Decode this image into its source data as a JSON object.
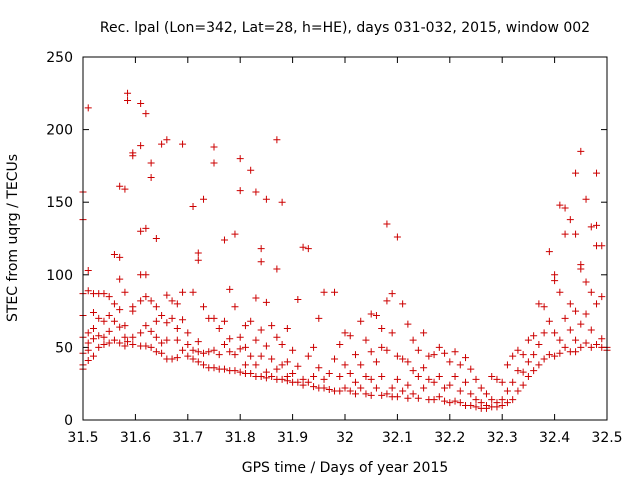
{
  "chart_data": {
    "type": "scatter",
    "title": "Rec. lpal (Lon=342, Lat=28, h=HE), days 031-032, 2015, window 002",
    "xlabel": "GPS time / Days of year 2015",
    "ylabel": "STEC from uqrg / TECUs",
    "xlim": [
      31.5,
      32.5
    ],
    "ylim": [
      0,
      250
    ],
    "x_ticks": [
      "31.5",
      "31.6",
      "31.7",
      "31.8",
      "31.9",
      "32",
      "32.1",
      "32.2",
      "32.3",
      "32.4",
      "32.5"
    ],
    "y_ticks": [
      "0",
      "50",
      "100",
      "150",
      "200",
      "250"
    ],
    "marker": "+",
    "color": "#cc0000",
    "points": [
      [
        31.5,
        157
      ],
      [
        31.5,
        138
      ],
      [
        31.5,
        87
      ],
      [
        31.5,
        72
      ],
      [
        31.5,
        57
      ],
      [
        31.5,
        46
      ],
      [
        31.5,
        38
      ],
      [
        31.5,
        35
      ],
      [
        31.51,
        215
      ],
      [
        31.51,
        103
      ],
      [
        31.51,
        89
      ],
      [
        31.51,
        60
      ],
      [
        31.51,
        53
      ],
      [
        31.51,
        48
      ],
      [
        31.51,
        41
      ],
      [
        31.52,
        87
      ],
      [
        31.52,
        74
      ],
      [
        31.52,
        63
      ],
      [
        31.52,
        56
      ],
      [
        31.52,
        44
      ],
      [
        31.53,
        87
      ],
      [
        31.53,
        70
      ],
      [
        31.53,
        58
      ],
      [
        31.53,
        50
      ],
      [
        31.54,
        87
      ],
      [
        31.54,
        68
      ],
      [
        31.54,
        57
      ],
      [
        31.54,
        52
      ],
      [
        31.55,
        85
      ],
      [
        31.55,
        72
      ],
      [
        31.55,
        61
      ],
      [
        31.55,
        53
      ],
      [
        31.56,
        114
      ],
      [
        31.56,
        80
      ],
      [
        31.56,
        68
      ],
      [
        31.56,
        55
      ],
      [
        31.57,
        161
      ],
      [
        31.57,
        112
      ],
      [
        31.57,
        97
      ],
      [
        31.57,
        76
      ],
      [
        31.57,
        64
      ],
      [
        31.57,
        53
      ],
      [
        31.58,
        159
      ],
      [
        31.58,
        88
      ],
      [
        31.58,
        65
      ],
      [
        31.58,
        57
      ],
      [
        31.58,
        51
      ],
      [
        31.585,
        225
      ],
      [
        31.585,
        220
      ],
      [
        31.585,
        54
      ],
      [
        31.595,
        184
      ],
      [
        31.595,
        182
      ],
      [
        31.595,
        78
      ],
      [
        31.595,
        75
      ],
      [
        31.595,
        57
      ],
      [
        31.595,
        52
      ],
      [
        31.61,
        218
      ],
      [
        31.61,
        189
      ],
      [
        31.61,
        130
      ],
      [
        31.61,
        100
      ],
      [
        31.61,
        82
      ],
      [
        31.61,
        60
      ],
      [
        31.61,
        51
      ],
      [
        31.62,
        211
      ],
      [
        31.62,
        132
      ],
      [
        31.62,
        100
      ],
      [
        31.62,
        85
      ],
      [
        31.62,
        65
      ],
      [
        31.62,
        51
      ],
      [
        31.63,
        177
      ],
      [
        31.63,
        167
      ],
      [
        31.63,
        82
      ],
      [
        31.63,
        61
      ],
      [
        31.63,
        50
      ],
      [
        31.64,
        125
      ],
      [
        31.64,
        78
      ],
      [
        31.64,
        68
      ],
      [
        31.64,
        57
      ],
      [
        31.64,
        47
      ],
      [
        31.65,
        190
      ],
      [
        31.65,
        72
      ],
      [
        31.65,
        53
      ],
      [
        31.65,
        46
      ],
      [
        31.66,
        193
      ],
      [
        31.66,
        86
      ],
      [
        31.66,
        67
      ],
      [
        31.66,
        55
      ],
      [
        31.66,
        42
      ],
      [
        31.67,
        82
      ],
      [
        31.67,
        70
      ],
      [
        31.67,
        42
      ],
      [
        31.68,
        80
      ],
      [
        31.68,
        63
      ],
      [
        31.68,
        55
      ],
      [
        31.68,
        43
      ],
      [
        31.69,
        190
      ],
      [
        31.69,
        88
      ],
      [
        31.69,
        69
      ],
      [
        31.69,
        48
      ],
      [
        31.7,
        60
      ],
      [
        31.7,
        52
      ],
      [
        31.7,
        44
      ],
      [
        31.71,
        147
      ],
      [
        31.71,
        88
      ],
      [
        31.71,
        48
      ],
      [
        31.71,
        42
      ],
      [
        31.72,
        115
      ],
      [
        31.72,
        110
      ],
      [
        31.72,
        54
      ],
      [
        31.72,
        47
      ],
      [
        31.72,
        40
      ],
      [
        31.73,
        152
      ],
      [
        31.73,
        78
      ],
      [
        31.73,
        46
      ],
      [
        31.73,
        38
      ],
      [
        31.74,
        70
      ],
      [
        31.74,
        47
      ],
      [
        31.74,
        36
      ],
      [
        31.75,
        188
      ],
      [
        31.75,
        177
      ],
      [
        31.75,
        70
      ],
      [
        31.75,
        48
      ],
      [
        31.75,
        36
      ],
      [
        31.76,
        63
      ],
      [
        31.76,
        45
      ],
      [
        31.76,
        35
      ],
      [
        31.77,
        124
      ],
      [
        31.77,
        68
      ],
      [
        31.77,
        52
      ],
      [
        31.77,
        35
      ],
      [
        31.78,
        90
      ],
      [
        31.78,
        56
      ],
      [
        31.78,
        47
      ],
      [
        31.78,
        34
      ],
      [
        31.79,
        128
      ],
      [
        31.79,
        78
      ],
      [
        31.79,
        45
      ],
      [
        31.79,
        34
      ],
      [
        31.8,
        180
      ],
      [
        31.8,
        158
      ],
      [
        31.8,
        57
      ],
      [
        31.8,
        49
      ],
      [
        31.8,
        33
      ],
      [
        31.81,
        65
      ],
      [
        31.81,
        50
      ],
      [
        31.81,
        38
      ],
      [
        31.81,
        32
      ],
      [
        31.82,
        172
      ],
      [
        31.82,
        68
      ],
      [
        31.82,
        44
      ],
      [
        31.82,
        32
      ],
      [
        31.83,
        157
      ],
      [
        31.83,
        84
      ],
      [
        31.83,
        55
      ],
      [
        31.83,
        38
      ],
      [
        31.83,
        30
      ],
      [
        31.84,
        118
      ],
      [
        31.84,
        109
      ],
      [
        31.84,
        62
      ],
      [
        31.84,
        44
      ],
      [
        31.84,
        30
      ],
      [
        31.85,
        152
      ],
      [
        31.85,
        81
      ],
      [
        31.85,
        51
      ],
      [
        31.85,
        33
      ],
      [
        31.85,
        29
      ],
      [
        31.86,
        65
      ],
      [
        31.86,
        42
      ],
      [
        31.86,
        30
      ],
      [
        31.87,
        193
      ],
      [
        31.87,
        104
      ],
      [
        31.87,
        57
      ],
      [
        31.87,
        35
      ],
      [
        31.87,
        28
      ],
      [
        31.88,
        150
      ],
      [
        31.88,
        52
      ],
      [
        31.88,
        38
      ],
      [
        31.88,
        28
      ],
      [
        31.89,
        63
      ],
      [
        31.89,
        40
      ],
      [
        31.89,
        30
      ],
      [
        31.89,
        27
      ],
      [
        31.9,
        48
      ],
      [
        31.9,
        32
      ],
      [
        31.9,
        26
      ],
      [
        31.91,
        83
      ],
      [
        31.91,
        37
      ],
      [
        31.91,
        26
      ],
      [
        31.92,
        119
      ],
      [
        31.92,
        28
      ],
      [
        31.92,
        24
      ],
      [
        31.93,
        118
      ],
      [
        31.93,
        44
      ],
      [
        31.93,
        26
      ],
      [
        31.94,
        50
      ],
      [
        31.94,
        30
      ],
      [
        31.94,
        23
      ],
      [
        31.95,
        70
      ],
      [
        31.95,
        36
      ],
      [
        31.95,
        22
      ],
      [
        31.96,
        88
      ],
      [
        31.96,
        28
      ],
      [
        31.96,
        22
      ],
      [
        31.97,
        32
      ],
      [
        31.97,
        21
      ],
      [
        31.98,
        88
      ],
      [
        31.98,
        42
      ],
      [
        31.98,
        20
      ],
      [
        31.99,
        52
      ],
      [
        31.99,
        30
      ],
      [
        31.99,
        20
      ],
      [
        32.0,
        60
      ],
      [
        32.0,
        38
      ],
      [
        32.0,
        22
      ],
      [
        32.01,
        58
      ],
      [
        32.01,
        32
      ],
      [
        32.01,
        20
      ],
      [
        32.02,
        45
      ],
      [
        32.02,
        26
      ],
      [
        32.02,
        18
      ],
      [
        32.03,
        68
      ],
      [
        32.03,
        38
      ],
      [
        32.03,
        22
      ],
      [
        32.04,
        55
      ],
      [
        32.04,
        30
      ],
      [
        32.04,
        18
      ],
      [
        32.05,
        73
      ],
      [
        32.05,
        47
      ],
      [
        32.05,
        28
      ],
      [
        32.05,
        17
      ],
      [
        32.06,
        72
      ],
      [
        32.06,
        40
      ],
      [
        32.06,
        22
      ],
      [
        32.07,
        63
      ],
      [
        32.07,
        50
      ],
      [
        32.07,
        30
      ],
      [
        32.07,
        17
      ],
      [
        32.08,
        135
      ],
      [
        32.08,
        82
      ],
      [
        32.08,
        48
      ],
      [
        32.08,
        18
      ],
      [
        32.09,
        87
      ],
      [
        32.09,
        60
      ],
      [
        32.09,
        22
      ],
      [
        32.09,
        16
      ],
      [
        32.1,
        126
      ],
      [
        32.1,
        44
      ],
      [
        32.1,
        28
      ],
      [
        32.1,
        16
      ],
      [
        32.11,
        80
      ],
      [
        32.11,
        42
      ],
      [
        32.11,
        20
      ],
      [
        32.12,
        66
      ],
      [
        32.12,
        40
      ],
      [
        32.12,
        24
      ],
      [
        32.12,
        15
      ],
      [
        32.13,
        55
      ],
      [
        32.13,
        34
      ],
      [
        32.13,
        18
      ],
      [
        32.14,
        48
      ],
      [
        32.14,
        30
      ],
      [
        32.14,
        15
      ],
      [
        32.15,
        60
      ],
      [
        32.15,
        36
      ],
      [
        32.15,
        22
      ],
      [
        32.16,
        44
      ],
      [
        32.16,
        28
      ],
      [
        32.16,
        14
      ],
      [
        32.17,
        45
      ],
      [
        32.17,
        26
      ],
      [
        32.17,
        14
      ],
      [
        32.18,
        50
      ],
      [
        32.18,
        30
      ],
      [
        32.18,
        16
      ],
      [
        32.19,
        46
      ],
      [
        32.19,
        22
      ],
      [
        32.19,
        13
      ],
      [
        32.2,
        40
      ],
      [
        32.2,
        24
      ],
      [
        32.2,
        12
      ],
      [
        32.21,
        47
      ],
      [
        32.21,
        30
      ],
      [
        32.21,
        13
      ],
      [
        32.22,
        38
      ],
      [
        32.22,
        20
      ],
      [
        32.22,
        12
      ],
      [
        32.23,
        43
      ],
      [
        32.23,
        26
      ],
      [
        32.23,
        10
      ],
      [
        32.24,
        35
      ],
      [
        32.24,
        18
      ],
      [
        32.24,
        10
      ],
      [
        32.25,
        28
      ],
      [
        32.25,
        14
      ],
      [
        32.25,
        9
      ],
      [
        32.26,
        22
      ],
      [
        32.26,
        12
      ],
      [
        32.26,
        8
      ],
      [
        32.27,
        18
      ],
      [
        32.27,
        10
      ],
      [
        32.27,
        8
      ],
      [
        32.28,
        30
      ],
      [
        32.28,
        14
      ],
      [
        32.28,
        9
      ],
      [
        32.29,
        28
      ],
      [
        32.29,
        12
      ],
      [
        32.29,
        9
      ],
      [
        32.3,
        26
      ],
      [
        32.3,
        14
      ],
      [
        32.3,
        10
      ],
      [
        32.31,
        38
      ],
      [
        32.31,
        20
      ],
      [
        32.31,
        12
      ],
      [
        32.32,
        44
      ],
      [
        32.32,
        26
      ],
      [
        32.32,
        14
      ],
      [
        32.33,
        48
      ],
      [
        32.33,
        34
      ],
      [
        32.33,
        20
      ],
      [
        32.34,
        45
      ],
      [
        32.34,
        33
      ],
      [
        32.34,
        24
      ],
      [
        32.35,
        55
      ],
      [
        32.35,
        40
      ],
      [
        32.35,
        30
      ],
      [
        32.36,
        58
      ],
      [
        32.36,
        45
      ],
      [
        32.36,
        34
      ],
      [
        32.37,
        80
      ],
      [
        32.37,
        52
      ],
      [
        32.37,
        38
      ],
      [
        32.38,
        78
      ],
      [
        32.38,
        60
      ],
      [
        32.38,
        42
      ],
      [
        32.39,
        116
      ],
      [
        32.39,
        68
      ],
      [
        32.39,
        45
      ],
      [
        32.4,
        100
      ],
      [
        32.4,
        96
      ],
      [
        32.4,
        60
      ],
      [
        32.4,
        44
      ],
      [
        32.41,
        148
      ],
      [
        32.41,
        88
      ],
      [
        32.41,
        55
      ],
      [
        32.41,
        46
      ],
      [
        32.42,
        146
      ],
      [
        32.42,
        128
      ],
      [
        32.42,
        70
      ],
      [
        32.42,
        50
      ],
      [
        32.43,
        138
      ],
      [
        32.43,
        80
      ],
      [
        32.43,
        62
      ],
      [
        32.43,
        47
      ],
      [
        32.44,
        170
      ],
      [
        32.44,
        128
      ],
      [
        32.44,
        75
      ],
      [
        32.44,
        55
      ],
      [
        32.44,
        47
      ],
      [
        32.45,
        185
      ],
      [
        32.45,
        107
      ],
      [
        32.45,
        104
      ],
      [
        32.45,
        66
      ],
      [
        32.45,
        50
      ],
      [
        32.46,
        152
      ],
      [
        32.46,
        95
      ],
      [
        32.46,
        73
      ],
      [
        32.46,
        53
      ],
      [
        32.47,
        133
      ],
      [
        32.47,
        88
      ],
      [
        32.47,
        62
      ],
      [
        32.47,
        50
      ],
      [
        32.48,
        170
      ],
      [
        32.48,
        134
      ],
      [
        32.48,
        120
      ],
      [
        32.48,
        80
      ],
      [
        32.48,
        52
      ],
      [
        32.49,
        120
      ],
      [
        32.49,
        85
      ],
      [
        32.49,
        56
      ],
      [
        32.49,
        50
      ],
      [
        32.5,
        50
      ],
      [
        32.5,
        48
      ]
    ]
  }
}
